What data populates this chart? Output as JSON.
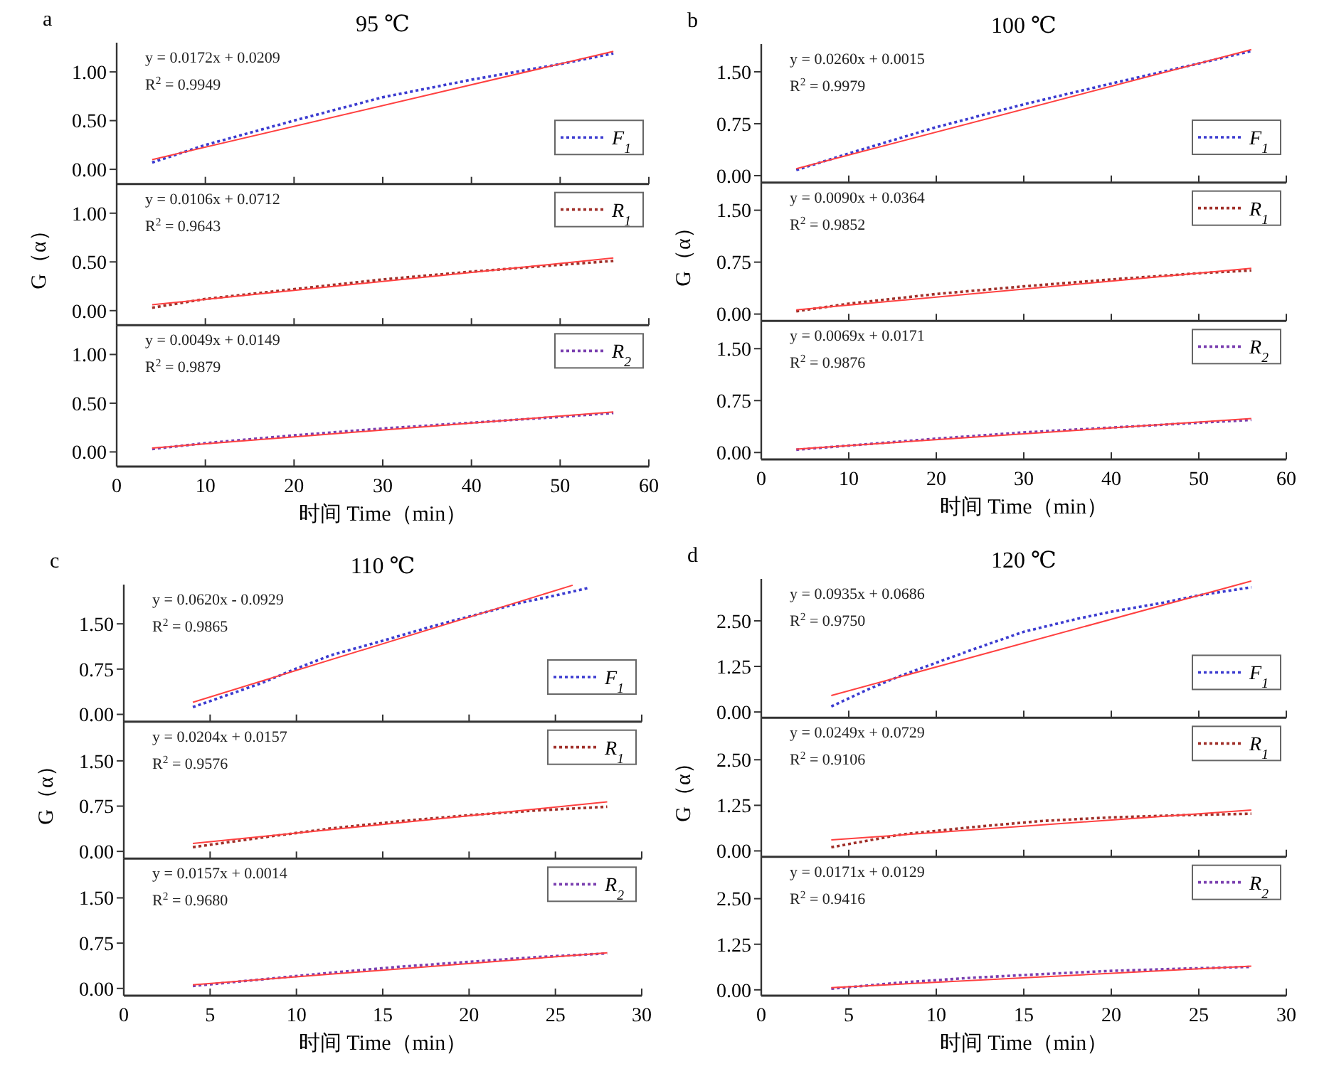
{
  "chart_data": [
    {
      "type": "line",
      "title": "95 ℃",
      "annotations": [
        "a",
        "y = 0.0172x + 0.0209",
        "R$^{2}$ = 0.9949"
      ],
      "xlim": [
        0,
        60
      ],
      "xticks": [
        0,
        10,
        20,
        30,
        40,
        50,
        60
      ],
      "ylim": [
        -0.15,
        1.3
      ],
      "yticks": [
        {
          "value": 0,
          "label": "0.00"
        },
        {
          "value": 0.5,
          "label": "0.50"
        },
        {
          "value": 1,
          "label": "1.00"
        }
      ],
      "tick_labels": "y",
      "legend": "right",
      "series": [
        {
          "name": "F$_{1}$",
          "color": "#3b3bd0",
          "line_style": "dotted",
          "x": [
            4,
            10,
            20,
            30,
            40,
            50,
            56
          ],
          "values": [
            0.07,
            0.25,
            0.5,
            0.74,
            0.92,
            1.08,
            1.19
          ]
        },
        {
          "color": "#ff4040",
          "line_style": "solid",
          "x": [
            4,
            56
          ],
          "values": [
            0.1,
            1.21
          ]
        }
      ]
    },
    {
      "type": "line",
      "ylabel": "G（α）",
      "annotations": [
        "y = 0.0106x + 0.0712",
        "R$^{2}$ = 0.9643"
      ],
      "xlim": [
        0,
        60
      ],
      "xticks": [
        0,
        10,
        20,
        30,
        40,
        50,
        60
      ],
      "ylim": [
        -0.15,
        1.3
      ],
      "yticks": [
        {
          "value": 0,
          "label": "0.00"
        },
        {
          "value": 0.5,
          "label": "0.50"
        },
        {
          "value": 1,
          "label": "1.00"
        }
      ],
      "tick_labels": "y",
      "legend": "top right",
      "series": [
        {
          "name": "R$_{1}$",
          "color": "#a0302a",
          "line_style": "dotted",
          "x": [
            4,
            10,
            20,
            30,
            40,
            50,
            56
          ],
          "values": [
            0.03,
            0.12,
            0.22,
            0.32,
            0.4,
            0.47,
            0.51
          ]
        },
        {
          "color": "#ff4040",
          "line_style": "solid",
          "x": [
            4,
            56
          ],
          "values": [
            0.06,
            0.54
          ]
        }
      ]
    },
    {
      "type": "line",
      "xlabel": "时间 Time（min）",
      "annotations": [
        "y = 0.0049x + 0.0149",
        "R$^{2}$ = 0.9879"
      ],
      "xlim": [
        0,
        60
      ],
      "xticks": [
        0,
        10,
        20,
        30,
        40,
        50,
        60
      ],
      "ylim": [
        -0.15,
        1.3
      ],
      "yticks": [
        {
          "value": 0,
          "label": "0.00"
        },
        {
          "value": 0.5,
          "label": "0.50"
        },
        {
          "value": 1,
          "label": "1.00"
        }
      ],
      "legend": "top right",
      "series": [
        {
          "name": "R$_{2}$",
          "color": "#7a3fb0",
          "line_style": "dotted",
          "x": [
            4,
            10,
            20,
            30,
            40,
            50,
            56
          ],
          "values": [
            0.03,
            0.09,
            0.17,
            0.24,
            0.3,
            0.36,
            0.4
          ]
        },
        {
          "color": "#ff4040",
          "line_style": "solid",
          "x": [
            4,
            56
          ],
          "values": [
            0.04,
            0.41
          ]
        }
      ]
    },
    {
      "type": "line",
      "title": "100 ℃",
      "annotations": [
        "b",
        "y = 0.0260x + 0.0015",
        "R$^{2}$ = 0.9979"
      ],
      "xlim": [
        0,
        60
      ],
      "xticks": [
        0,
        10,
        20,
        30,
        40,
        50,
        60
      ],
      "ylim": [
        -0.1,
        1.9
      ],
      "yticks": [
        {
          "value": 0,
          "label": "0.00"
        },
        {
          "value": 0.75,
          "label": "0.75"
        },
        {
          "value": 1.5,
          "label": "1.50"
        }
      ],
      "tick_labels": "y",
      "legend": "right",
      "series": [
        {
          "name": "F$_{1}$",
          "color": "#3b3bd0",
          "line_style": "dotted",
          "x": [
            4,
            10,
            20,
            30,
            40,
            50,
            56
          ],
          "values": [
            0.08,
            0.32,
            0.7,
            1.03,
            1.33,
            1.62,
            1.8
          ]
        },
        {
          "color": "#ff4040",
          "line_style": "solid",
          "x": [
            4,
            56
          ],
          "values": [
            0.1,
            1.82
          ]
        }
      ]
    },
    {
      "type": "line",
      "ylabel": "G（α）",
      "annotations": [
        "y = 0.0090x + 0.0364",
        "R$^{2}$ = 0.9852"
      ],
      "xlim": [
        0,
        60
      ],
      "xticks": [
        0,
        10,
        20,
        30,
        40,
        50,
        60
      ],
      "ylim": [
        -0.1,
        1.9
      ],
      "yticks": [
        {
          "value": 0,
          "label": "0.00"
        },
        {
          "value": 0.75,
          "label": "0.75"
        },
        {
          "value": 1.5,
          "label": "1.50"
        }
      ],
      "tick_labels": "y",
      "legend": "top right",
      "series": [
        {
          "name": "R$_{1}$",
          "color": "#a0302a",
          "line_style": "dotted",
          "x": [
            4,
            10,
            20,
            30,
            40,
            50,
            56
          ],
          "values": [
            0.04,
            0.15,
            0.29,
            0.4,
            0.5,
            0.59,
            0.63
          ]
        },
        {
          "color": "#ff4040",
          "line_style": "solid",
          "x": [
            4,
            56
          ],
          "values": [
            0.06,
            0.66
          ]
        }
      ]
    },
    {
      "type": "line",
      "xlabel": "时间 Time（min）",
      "annotations": [
        "y = 0.0069x + 0.0171",
        "R$^{2}$ = 0.9876"
      ],
      "xlim": [
        0,
        60
      ],
      "xticks": [
        0,
        10,
        20,
        30,
        40,
        50,
        60
      ],
      "ylim": [
        -0.1,
        1.9
      ],
      "yticks": [
        {
          "value": 0,
          "label": "0.00"
        },
        {
          "value": 0.75,
          "label": "0.75"
        },
        {
          "value": 1.5,
          "label": "1.50"
        }
      ],
      "legend": "top right",
      "series": [
        {
          "name": "R$_{2}$",
          "color": "#7a3fb0",
          "line_style": "dotted",
          "x": [
            4,
            10,
            20,
            30,
            40,
            50,
            56
          ],
          "values": [
            0.04,
            0.1,
            0.2,
            0.29,
            0.36,
            0.43,
            0.47
          ]
        },
        {
          "color": "#ff4040",
          "line_style": "solid",
          "x": [
            4,
            56
          ],
          "values": [
            0.05,
            0.49
          ]
        }
      ]
    },
    {
      "type": "line",
      "title": "110 ℃",
      "annotations": [
        "c",
        "y = 0.0620x - 0.0929",
        "R$^{2}$ = 0.9865"
      ],
      "xlim": [
        0,
        30
      ],
      "xticks": [
        0,
        5,
        10,
        15,
        20,
        25,
        30
      ],
      "ylim": [
        -0.12,
        2.15
      ],
      "yticks": [
        {
          "value": 0,
          "label": "0.00"
        },
        {
          "value": 0.75,
          "label": "0.75"
        },
        {
          "value": 1.5,
          "label": "1.50"
        }
      ],
      "tick_labels": "y",
      "legend": "right",
      "series": [
        {
          "name": "F$_{1}$",
          "color": "#3b3bd0",
          "line_style": "dotted",
          "x": [
            4,
            6,
            8,
            10,
            12,
            15,
            18,
            20,
            23,
            25,
            27
          ],
          "values": [
            0.12,
            0.32,
            0.52,
            0.76,
            0.98,
            1.22,
            1.47,
            1.62,
            1.85,
            1.97,
            2.1
          ]
        },
        {
          "color": "#ff4040",
          "line_style": "solid",
          "x": [
            4,
            26
          ],
          "values": [
            0.2,
            2.14
          ]
        }
      ]
    },
    {
      "type": "line",
      "ylabel": "G（α）",
      "annotations": [
        "y = 0.0204x + 0.0157",
        "R$^{2}$ = 0.9576"
      ],
      "xlim": [
        0,
        30
      ],
      "xticks": [
        0,
        5,
        10,
        15,
        20,
        25,
        30
      ],
      "ylim": [
        -0.12,
        2.15
      ],
      "yticks": [
        {
          "value": 0,
          "label": "0.00"
        },
        {
          "value": 0.75,
          "label": "0.75"
        },
        {
          "value": 1.5,
          "label": "1.50"
        }
      ],
      "tick_labels": "y",
      "legend": "top right",
      "series": [
        {
          "name": "R$_{1}$",
          "color": "#a0302a",
          "line_style": "dotted",
          "x": [
            4,
            8,
            12,
            16,
            20,
            24,
            28
          ],
          "values": [
            0.07,
            0.23,
            0.38,
            0.5,
            0.6,
            0.68,
            0.74
          ]
        },
        {
          "color": "#ff4040",
          "line_style": "solid",
          "x": [
            4,
            28
          ],
          "values": [
            0.13,
            0.82
          ]
        }
      ]
    },
    {
      "type": "line",
      "xlabel": "时间 Time（min）",
      "annotations": [
        "y = 0.0157x + 0.0014",
        "R$^{2}$ = 0.9680"
      ],
      "xlim": [
        0,
        30
      ],
      "xticks": [
        0,
        5,
        10,
        15,
        20,
        25,
        30
      ],
      "ylim": [
        -0.12,
        2.15
      ],
      "yticks": [
        {
          "value": 0,
          "label": "0.00"
        },
        {
          "value": 0.75,
          "label": "0.75"
        },
        {
          "value": 1.5,
          "label": "1.50"
        }
      ],
      "legend": "top right",
      "series": [
        {
          "name": "R$_{2}$",
          "color": "#7a3fb0",
          "line_style": "dotted",
          "x": [
            4,
            8,
            12,
            16,
            20,
            24,
            28
          ],
          "values": [
            0.04,
            0.15,
            0.26,
            0.36,
            0.44,
            0.52,
            0.58
          ]
        },
        {
          "color": "#ff4040",
          "line_style": "solid",
          "x": [
            4,
            28
          ],
          "values": [
            0.06,
            0.59
          ]
        }
      ]
    },
    {
      "type": "line",
      "title": "120 ℃",
      "annotations": [
        "d",
        "y = 0.0935x + 0.0686",
        "R$^{2}$ = 0.9750"
      ],
      "xlim": [
        0,
        30
      ],
      "xticks": [
        0,
        5,
        10,
        15,
        20,
        25,
        30
      ],
      "ylim": [
        -0.16,
        3.65
      ],
      "yticks": [
        {
          "value": 0,
          "label": "0.00"
        },
        {
          "value": 1.25,
          "label": "1.25"
        },
        {
          "value": 2.5,
          "label": "2.50"
        }
      ],
      "tick_labels": "y",
      "legend": "right",
      "series": [
        {
          "name": "F$_{1}$",
          "color": "#3b3bd0",
          "line_style": "dotted",
          "x": [
            4,
            6,
            8,
            10,
            12,
            15,
            18,
            20,
            23,
            25,
            28
          ],
          "values": [
            0.15,
            0.6,
            1.0,
            1.35,
            1.7,
            2.2,
            2.55,
            2.75,
            3.0,
            3.2,
            3.42
          ]
        },
        {
          "color": "#ff4040",
          "line_style": "solid",
          "x": [
            4,
            28
          ],
          "values": [
            0.45,
            3.59
          ]
        }
      ]
    },
    {
      "type": "line",
      "ylabel": "G（α）",
      "annotations": [
        "y = 0.0249x + 0.0729",
        "R$^{2}$ = 0.9106"
      ],
      "xlim": [
        0,
        30
      ],
      "xticks": [
        0,
        5,
        10,
        15,
        20,
        25,
        30
      ],
      "ylim": [
        -0.16,
        3.65
      ],
      "yticks": [
        {
          "value": 0,
          "label": "0.00"
        },
        {
          "value": 1.25,
          "label": "1.25"
        },
        {
          "value": 2.5,
          "label": "2.50"
        }
      ],
      "tick_labels": "y",
      "legend": "top right",
      "series": [
        {
          "name": "R$_{1}$",
          "color": "#a0302a",
          "line_style": "dotted",
          "x": [
            4,
            8,
            12,
            16,
            20,
            24,
            28
          ],
          "values": [
            0.1,
            0.45,
            0.65,
            0.82,
            0.92,
            0.98,
            1.02
          ]
        },
        {
          "color": "#ff4040",
          "line_style": "solid",
          "x": [
            4,
            28
          ],
          "values": [
            0.3,
            1.12
          ]
        }
      ]
    },
    {
      "type": "line",
      "xlabel": "时间 Time（min）",
      "annotations": [
        "y = 0.0171x + 0.0129",
        "R$^{2}$ = 0.9416"
      ],
      "xlim": [
        0,
        30
      ],
      "xticks": [
        0,
        5,
        10,
        15,
        20,
        25,
        30
      ],
      "ylim": [
        -0.16,
        3.65
      ],
      "yticks": [
        {
          "value": 0,
          "label": "0.00"
        },
        {
          "value": 1.25,
          "label": "1.25"
        },
        {
          "value": 2.5,
          "label": "2.50"
        }
      ],
      "legend": "top right",
      "series": [
        {
          "name": "R$_{2}$",
          "color": "#7a3fb0",
          "line_style": "dotted",
          "x": [
            4,
            8,
            12,
            16,
            20,
            24,
            28
          ],
          "values": [
            0.03,
            0.2,
            0.33,
            0.43,
            0.52,
            0.58,
            0.63
          ]
        },
        {
          "color": "#ff4040",
          "line_style": "solid",
          "x": [
            4,
            28
          ],
          "values": [
            0.06,
            0.65
          ]
        }
      ]
    }
  ]
}
